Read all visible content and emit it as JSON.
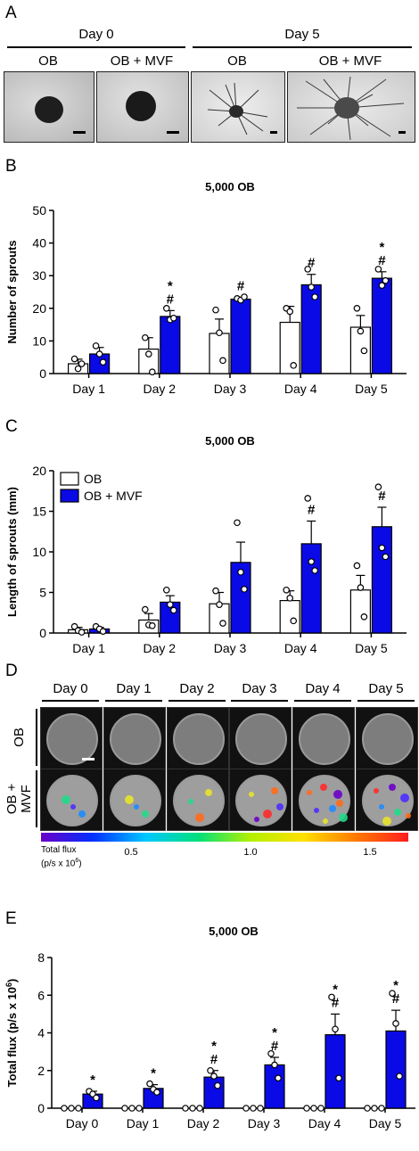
{
  "panel_a": {
    "letter": "A",
    "groups": [
      {
        "title": "Day 0",
        "images": [
          {
            "label": "OB"
          },
          {
            "label": "OB + MVF"
          }
        ]
      },
      {
        "title": "Day 5",
        "images": [
          {
            "label": "OB"
          },
          {
            "label": "OB + MVF"
          }
        ]
      }
    ]
  },
  "panel_d": {
    "letter": "D",
    "days": [
      "Day 0",
      "Day 1",
      "Day 2",
      "Day 3",
      "Day 4",
      "Day 5"
    ],
    "row_labels": [
      "OB",
      "OB +\nMVF"
    ],
    "colorbar": {
      "label_line1": "Total flux",
      "label_line2": "(p/s x 10",
      "label_sup": "6",
      "label_end": ")",
      "ticks": [
        "0.5",
        "1.0",
        "1.5"
      ],
      "colors": [
        "#6a00c8",
        "#0030ff",
        "#00c8ff",
        "#00e07a",
        "#b4f000",
        "#ffe000",
        "#ff7a00",
        "#ff1e1e"
      ]
    }
  },
  "colors": {
    "ob_fill": "#ffffff",
    "mvf_fill": "#0a0ae6",
    "edge": "#000000"
  },
  "chart_data": [
    {
      "panel": "B",
      "type": "bar",
      "title": "5,000 OB",
      "ylabel": "Number of sprouts",
      "ylim": [
        0,
        50
      ],
      "yticks": [
        0,
        10,
        20,
        30,
        40,
        50
      ],
      "categories": [
        "Day 1",
        "Day 2",
        "Day 3",
        "Day 4",
        "Day 5"
      ],
      "series": [
        {
          "key": "ob",
          "values": [
            3,
            7.5,
            12.3,
            15.7,
            14.2
          ],
          "sem": [
            1.4,
            3.5,
            4.4,
            4.9,
            3.6
          ],
          "points": [
            [
              4.5,
              1.5,
              3
            ],
            [
              11,
              6,
              0.5
            ],
            [
              19.5,
              12.5,
              4
            ],
            [
              20,
              19,
              2.5
            ],
            [
              20,
              13,
              7
            ]
          ]
        },
        {
          "key": "mvf",
          "values": [
            6,
            17.5,
            22.8,
            27.2,
            29.2
          ],
          "sem": [
            2,
            1.8,
            0.6,
            3.2,
            2
          ],
          "points": [
            [
              8.5,
              6,
              3.5
            ],
            [
              20,
              16.5,
              17
            ],
            [
              23,
              22.5,
              23.5
            ],
            [
              32,
              26.5,
              23.5
            ],
            [
              32,
              27,
              28.5
            ]
          ]
        }
      ],
      "annotations": [
        [
          "",
          ""
        ],
        [
          "",
          "*\n#"
        ],
        [
          "",
          "#"
        ],
        [
          "",
          "#"
        ],
        [
          "",
          "*\n#"
        ]
      ],
      "legend": null
    },
    {
      "panel": "C",
      "type": "bar",
      "title": "5,000 OB",
      "ylabel": "Length of sprouts (mm)",
      "ylim": [
        0,
        20
      ],
      "yticks": [
        0,
        5,
        10,
        15,
        20
      ],
      "categories": [
        "Day 1",
        "Day 2",
        "Day 3",
        "Day 4",
        "Day 5"
      ],
      "series": [
        {
          "key": "ob",
          "name": "OB",
          "values": [
            0.4,
            1.6,
            3.6,
            4,
            5.3
          ],
          "sem": [
            0.3,
            0.8,
            1.4,
            1.2,
            1.8
          ],
          "points": [
            [
              0.8,
              0.3,
              0.1
            ],
            [
              2.9,
              1,
              0.9
            ],
            [
              5.2,
              3.5,
              1.2
            ],
            [
              5.3,
              4.3,
              1.5
            ],
            [
              8.3,
              5.6,
              2
            ]
          ]
        },
        {
          "key": "mvf",
          "name": "OB + MVF",
          "values": [
            0.5,
            3.8,
            8.7,
            11,
            13.1
          ],
          "sem": [
            0.2,
            0.8,
            2.5,
            2.8,
            2.4
          ],
          "points": [
            [
              0.8,
              0.5,
              0.2
            ],
            [
              5.3,
              3.5,
              2.8
            ],
            [
              13.6,
              7.5,
              5.4
            ],
            [
              16.6,
              8.8,
              7.7
            ],
            [
              18,
              10.5,
              9.4
            ]
          ]
        }
      ],
      "annotations": [
        [
          "",
          ""
        ],
        [
          "",
          ""
        ],
        [
          "",
          ""
        ],
        [
          "",
          "#"
        ],
        [
          "",
          "#"
        ]
      ],
      "legend": "top-left"
    },
    {
      "panel": "E",
      "type": "bar",
      "title": "5,000 OB",
      "ylabel": "Total flux (p/s x 10",
      "ylabel_sup": "6",
      "ylabel_end": ")",
      "ylim": [
        0,
        8
      ],
      "yticks": [
        0,
        2,
        4,
        6,
        8
      ],
      "categories": [
        "Day 0",
        "Day 1",
        "Day 2",
        "Day 3",
        "Day 4",
        "Day 5"
      ],
      "series": [
        {
          "key": "ob",
          "values": [
            0,
            0,
            0,
            0,
            0,
            0
          ],
          "sem": [
            0,
            0,
            0,
            0,
            0,
            0
          ],
          "points": [
            [
              0,
              0,
              0
            ],
            [
              0,
              0,
              0
            ],
            [
              0,
              0,
              0
            ],
            [
              0,
              0,
              0
            ],
            [
              0,
              0,
              0
            ],
            [
              0,
              0,
              0
            ]
          ]
        },
        {
          "key": "mvf",
          "values": [
            0.75,
            1.05,
            1.65,
            2.3,
            3.9,
            4.1
          ],
          "sem": [
            0.15,
            0.2,
            0.35,
            0.4,
            1.1,
            1.1
          ],
          "points": [
            [
              0.9,
              0.75,
              0.55
            ],
            [
              1.3,
              1,
              0.85
            ],
            [
              2,
              1.7,
              1.2
            ],
            [
              2.9,
              2.3,
              1.6
            ],
            [
              5.9,
              4.2,
              1.6
            ],
            [
              6.1,
              4.5,
              1.7
            ]
          ]
        }
      ],
      "annotations": [
        [
          "",
          "*"
        ],
        [
          "",
          "*"
        ],
        [
          "",
          "*\n#"
        ],
        [
          "",
          "*\n#"
        ],
        [
          "",
          "*\n#"
        ],
        [
          "",
          "*\n#"
        ]
      ],
      "legend": null
    }
  ]
}
